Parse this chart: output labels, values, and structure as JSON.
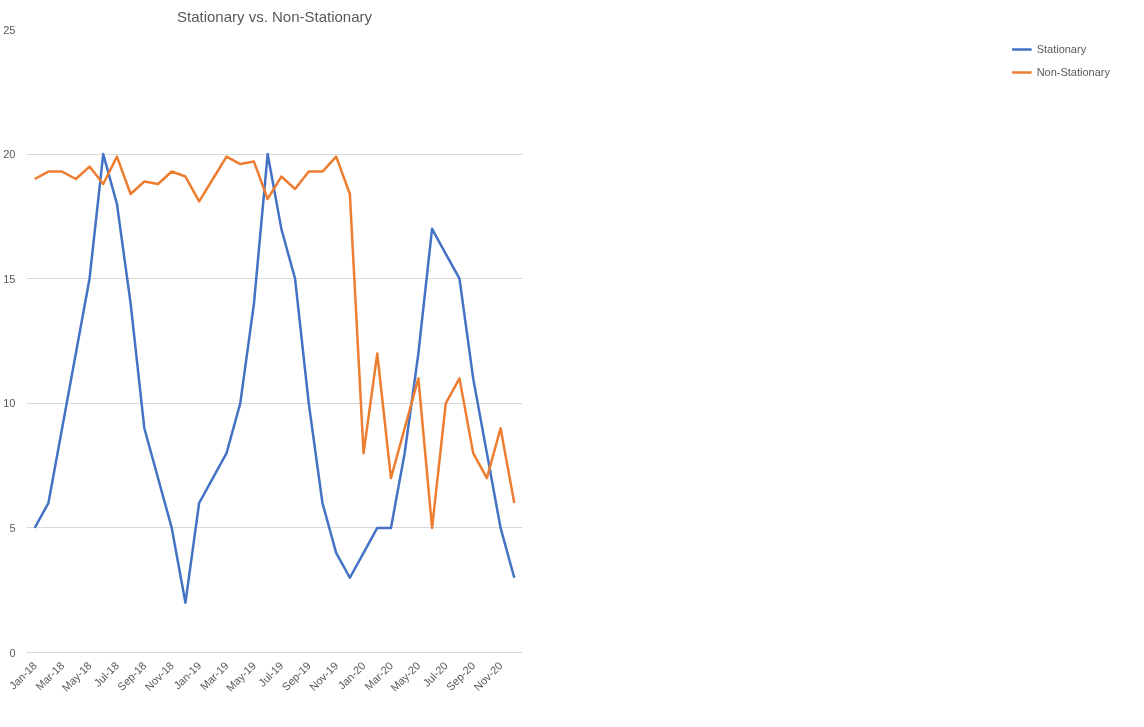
{
  "chart_data": {
    "type": "line",
    "title": "Stationary vs. Non-Stationary",
    "categories": [
      "Jan-18",
      null,
      "Mar-18",
      null,
      "May-18",
      null,
      "Jul-18",
      null,
      "Sep-18",
      null,
      "Nov-18",
      null,
      "Jan-19",
      null,
      "Mar-19",
      null,
      "May-19",
      null,
      "Jul-19",
      null,
      "Sep-19",
      null,
      "Nov-19",
      null,
      "Jan-20",
      null,
      "Mar-20",
      null,
      "May-20",
      null,
      "Jul-20",
      null,
      "Sep-20",
      null,
      "Nov-20",
      null
    ],
    "series": [
      {
        "name": "Stationary",
        "color": "#4472c4",
        "values": [
          5,
          6,
          9,
          12,
          15,
          20,
          18,
          14,
          9,
          7,
          5,
          2,
          6,
          7,
          8,
          10,
          14,
          20,
          17,
          15,
          10,
          6,
          4,
          3,
          4,
          5,
          5,
          8,
          12,
          17,
          16,
          15,
          11,
          8,
          5,
          3
        ]
      },
      {
        "name": "Non-Stationary",
        "color": "#ed7d31",
        "values": [
          19,
          19.3,
          19.3,
          19,
          19.5,
          18.8,
          19.9,
          18.4,
          18.9,
          18.8,
          19.3,
          19.1,
          18.1,
          19,
          19.9,
          19.6,
          19.7,
          18.2,
          19.1,
          18.6,
          19.3,
          19.3,
          19.9,
          18.4,
          8,
          12,
          7,
          9,
          11,
          5,
          10,
          11,
          8,
          7,
          9,
          6
        ]
      }
    ],
    "ylim": [
      0,
      25
    ],
    "yticks": [
      0,
      5,
      10,
      15,
      20,
      25
    ],
    "grid": "y",
    "legend": "right",
    "marker": "none",
    "line_style": "solid"
  }
}
